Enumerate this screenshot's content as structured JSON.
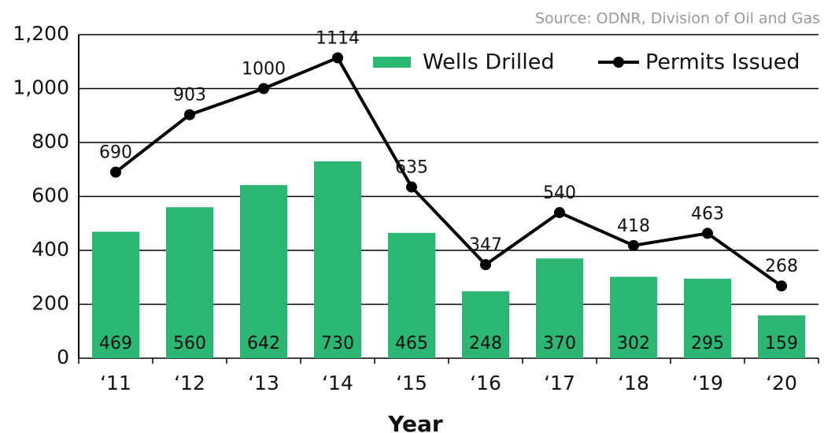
{
  "chart_data": {
    "type": "bar",
    "source": "Source: ODNR, Division of Oil and Gas",
    "x_label": "Year",
    "categories": [
      "‘11",
      "‘12",
      "‘13",
      "‘14",
      "‘15",
      "‘16",
      "‘17",
      "‘18",
      "‘19",
      "‘20"
    ],
    "series": [
      {
        "name": "Wells Drilled",
        "type": "bar",
        "color": "#2db673",
        "values": [
          469,
          560,
          642,
          730,
          465,
          248,
          370,
          302,
          295,
          159
        ]
      },
      {
        "name": "Permits Issued",
        "type": "line",
        "color": "#000000",
        "values": [
          690,
          903,
          1000,
          1114,
          635,
          347,
          540,
          418,
          463,
          268
        ]
      }
    ],
    "ylim": [
      0,
      1200
    ],
    "yticks": [
      0,
      200,
      400,
      600,
      800,
      {
        "value": 1000,
        "label": "1,000"
      },
      {
        "value": 1200,
        "label": "1,200"
      }
    ],
    "grid": true,
    "legend": "top-right"
  }
}
